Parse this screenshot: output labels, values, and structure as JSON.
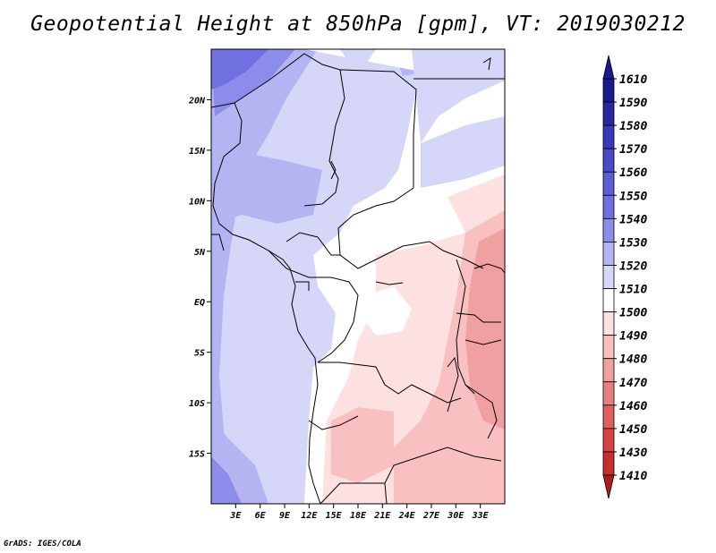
{
  "title": "Geopotential Height at 850hPa [gpm], VT: 2019030212",
  "credit": "GrADS: IGES/COLA",
  "map": {
    "lon_range": [
      0,
      36
    ],
    "lat_range": [
      -20,
      25
    ],
    "lon_ticks": [
      {
        "value": 3,
        "label": "3E"
      },
      {
        "value": 6,
        "label": "6E"
      },
      {
        "value": 9,
        "label": "9E"
      },
      {
        "value": 12,
        "label": "12E"
      },
      {
        "value": 15,
        "label": "15E"
      },
      {
        "value": 18,
        "label": "18E"
      },
      {
        "value": 21,
        "label": "21E"
      },
      {
        "value": 24,
        "label": "24E"
      },
      {
        "value": 27,
        "label": "27E"
      },
      {
        "value": 30,
        "label": "30E"
      },
      {
        "value": 33,
        "label": "33E"
      }
    ],
    "lat_ticks": [
      {
        "value": 20,
        "label": "20N"
      },
      {
        "value": 15,
        "label": "15N"
      },
      {
        "value": 10,
        "label": "10N"
      },
      {
        "value": 5,
        "label": "5N"
      },
      {
        "value": 0,
        "label": "EQ"
      },
      {
        "value": -5,
        "label": "5S"
      },
      {
        "value": -10,
        "label": "10S"
      },
      {
        "value": -15,
        "label": "15S"
      }
    ]
  },
  "colorbar": {
    "levels": [
      {
        "label": "1610",
        "color": "#1a1a8c"
      },
      {
        "label": "1590",
        "color": "#2828a0"
      },
      {
        "label": "1580",
        "color": "#3838b8"
      },
      {
        "label": "1570",
        "color": "#4a4ac8"
      },
      {
        "label": "1560",
        "color": "#5c5cd6"
      },
      {
        "label": "1550",
        "color": "#7070e0"
      },
      {
        "label": "1540",
        "color": "#8c8cea"
      },
      {
        "label": "1530",
        "color": "#b4b4f2"
      },
      {
        "label": "1520",
        "color": "#d6d6f8"
      },
      {
        "label": "1510",
        "color": "#ffffff"
      },
      {
        "label": "1500",
        "color": "#fde0e0"
      },
      {
        "label": "1490",
        "color": "#f8c0c0"
      },
      {
        "label": "1480",
        "color": "#f0a0a0"
      },
      {
        "label": "1470",
        "color": "#e88080"
      },
      {
        "label": "1460",
        "color": "#e06060"
      },
      {
        "label": "1450",
        "color": "#d84444"
      },
      {
        "label": "1430",
        "color": "#c82e2e"
      },
      {
        "label": "1410",
        "color": "#b01c1c"
      }
    ],
    "top_color": "#1a1a8c",
    "bottom_color": "#b01c1c"
  }
}
